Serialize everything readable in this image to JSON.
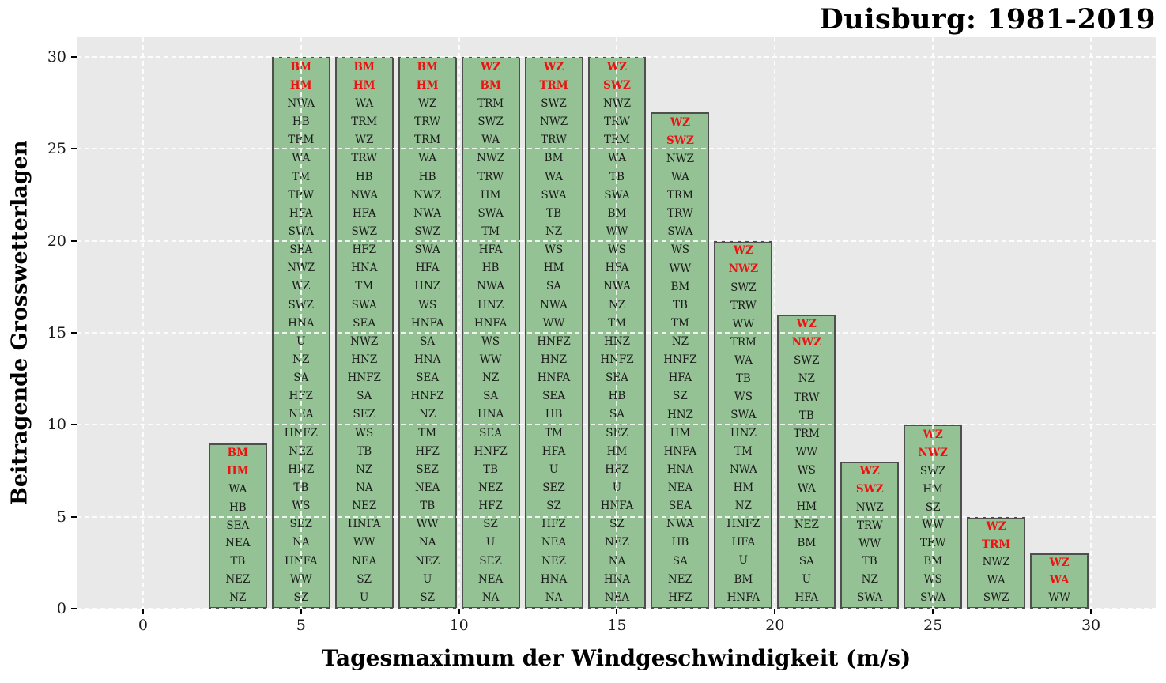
{
  "chart_data": {
    "type": "bar",
    "title": "Duisburg: 1981-2019",
    "xlabel": "Tagesmaximum der Windgeschwindigkeit (m/s)",
    "ylabel": "Beitragende Grosswetterlagen",
    "x_ticks": [
      0,
      5,
      10,
      15,
      20,
      25,
      30
    ],
    "y_ticks": [
      0,
      5,
      10,
      15,
      20,
      25,
      30
    ],
    "xlim": [
      -2.1,
      32.05
    ],
    "ylim": [
      0,
      31.07
    ],
    "bar_width": 1.85,
    "grid": "white-dashed",
    "legend": "none",
    "colors": {
      "bar_fill": "#95c295",
      "bar_edge": "#4f4f4f",
      "label_normal": "#1a1a1a",
      "label_highlight": "#ee1111",
      "plot_background": "#e9e9e9",
      "figure_background": "#ffffff",
      "grid_color": "#ffffff"
    },
    "bars": [
      {
        "x_center": 3,
        "count": 9,
        "red_count": 2,
        "labels": [
          "BM",
          "HM",
          "WA",
          "HB",
          "SEA",
          "NEA",
          "TB",
          "NEZ",
          "NZ"
        ]
      },
      {
        "x_center": 5,
        "count": 30,
        "red_count": 2,
        "labels": [
          "BM",
          "HM",
          "NWA",
          "HB",
          "TRM",
          "WA",
          "TM",
          "TRW",
          "HFA",
          "SWA",
          "SEA",
          "NWZ",
          "WZ",
          "SWZ",
          "HNA",
          "U",
          "NZ",
          "SA",
          "HFZ",
          "NEA",
          "HNFZ",
          "NEZ",
          "HNZ",
          "TB",
          "WS",
          "SEZ",
          "NA",
          "HNFA",
          "WW",
          "SZ"
        ]
      },
      {
        "x_center": 7,
        "count": 30,
        "red_count": 2,
        "labels": [
          "BM",
          "HM",
          "WA",
          "TRM",
          "WZ",
          "TRW",
          "HB",
          "NWA",
          "HFA",
          "SWZ",
          "HFZ",
          "HNA",
          "TM",
          "SWA",
          "SEA",
          "NWZ",
          "HNZ",
          "HNFZ",
          "SA",
          "SEZ",
          "WS",
          "TB",
          "NZ",
          "NA",
          "NEZ",
          "HNFA",
          "WW",
          "NEA",
          "SZ",
          "U"
        ]
      },
      {
        "x_center": 9,
        "count": 30,
        "red_count": 2,
        "labels": [
          "BM",
          "HM",
          "WZ",
          "TRW",
          "TRM",
          "WA",
          "HB",
          "NWZ",
          "NWA",
          "SWZ",
          "SWA",
          "HFA",
          "HNZ",
          "WS",
          "HNFA",
          "SA",
          "HNA",
          "SEA",
          "HNFZ",
          "NZ",
          "TM",
          "HFZ",
          "SEZ",
          "NEA",
          "TB",
          "WW",
          "NA",
          "NEZ",
          "U",
          "SZ"
        ]
      },
      {
        "x_center": 11,
        "count": 30,
        "red_count": 2,
        "labels": [
          "WZ",
          "BM",
          "TRM",
          "SWZ",
          "WA",
          "NWZ",
          "TRW",
          "HM",
          "SWA",
          "TM",
          "HFA",
          "HB",
          "NWA",
          "HNZ",
          "HNFA",
          "WS",
          "WW",
          "NZ",
          "SA",
          "HNA",
          "SEA",
          "HNFZ",
          "TB",
          "NEZ",
          "HFZ",
          "SZ",
          "U",
          "SEZ",
          "NEA",
          "NA"
        ]
      },
      {
        "x_center": 13,
        "count": 30,
        "red_count": 2,
        "labels": [
          "WZ",
          "TRM",
          "SWZ",
          "NWZ",
          "TRW",
          "BM",
          "WA",
          "SWA",
          "TB",
          "NZ",
          "WS",
          "HM",
          "SA",
          "NWA",
          "WW",
          "HNFZ",
          "HNZ",
          "HNFA",
          "SEA",
          "HB",
          "TM",
          "HFA",
          "U",
          "SEZ",
          "SZ",
          "HFZ",
          "NEA",
          "NEZ",
          "HNA",
          "NA"
        ]
      },
      {
        "x_center": 15,
        "count": 30,
        "red_count": 2,
        "labels": [
          "WZ",
          "SWZ",
          "NWZ",
          "TRW",
          "TRM",
          "WA",
          "TB",
          "SWA",
          "BM",
          "WW",
          "WS",
          "HFA",
          "NWA",
          "NZ",
          "TM",
          "HNZ",
          "HNFZ",
          "SEA",
          "HB",
          "SA",
          "SEZ",
          "HM",
          "HFZ",
          "U",
          "HNFA",
          "SZ",
          "NEZ",
          "NA",
          "HNA",
          "NEA"
        ]
      },
      {
        "x_center": 17,
        "count": 27,
        "red_count": 2,
        "labels": [
          "WZ",
          "SWZ",
          "NWZ",
          "WA",
          "TRM",
          "TRW",
          "SWA",
          "WS",
          "WW",
          "BM",
          "TB",
          "TM",
          "NZ",
          "HNFZ",
          "HFA",
          "SZ",
          "HNZ",
          "HM",
          "HNFA",
          "HNA",
          "NEA",
          "SEA",
          "NWA",
          "HB",
          "SA",
          "NEZ",
          "HFZ"
        ]
      },
      {
        "x_center": 19,
        "count": 20,
        "red_count": 2,
        "labels": [
          "WZ",
          "NWZ",
          "SWZ",
          "TRW",
          "WW",
          "TRM",
          "WA",
          "TB",
          "WS",
          "SWA",
          "HNZ",
          "TM",
          "NWA",
          "HM",
          "NZ",
          "HNFZ",
          "HFA",
          "U",
          "BM",
          "HNFA"
        ]
      },
      {
        "x_center": 21,
        "count": 16,
        "red_count": 2,
        "labels": [
          "WZ",
          "NWZ",
          "SWZ",
          "NZ",
          "TRW",
          "TB",
          "TRM",
          "WW",
          "WS",
          "WA",
          "HM",
          "NEZ",
          "BM",
          "SA",
          "U",
          "HFA"
        ]
      },
      {
        "x_center": 23,
        "count": 8,
        "red_count": 2,
        "labels": [
          "WZ",
          "SWZ",
          "NWZ",
          "TRW",
          "WW",
          "TB",
          "NZ",
          "SWA"
        ]
      },
      {
        "x_center": 25,
        "count": 10,
        "red_count": 2,
        "labels": [
          "WZ",
          "NWZ",
          "SWZ",
          "HM",
          "SZ",
          "WW",
          "TRW",
          "BM",
          "WS",
          "SWA"
        ]
      },
      {
        "x_center": 27,
        "count": 5,
        "red_count": 2,
        "labels": [
          "WZ",
          "TRM",
          "NWZ",
          "WA",
          "SWZ"
        ]
      },
      {
        "x_center": 29,
        "count": 3,
        "red_count": 2,
        "labels": [
          "WZ",
          "WA",
          "WW"
        ]
      }
    ]
  }
}
